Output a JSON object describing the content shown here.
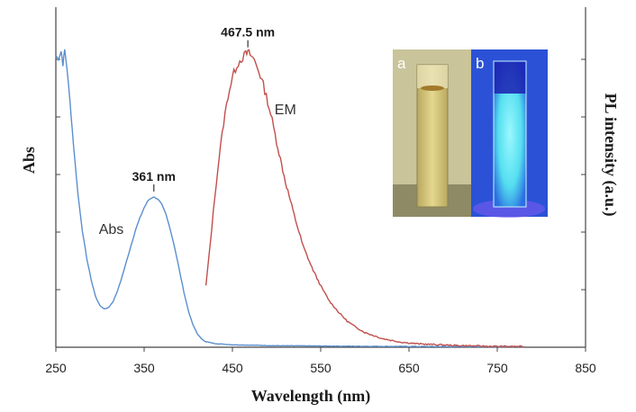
{
  "chart_data": {
    "type": "line",
    "xlabel": "Wavelength  (nm)",
    "ylabel_left": "Abs",
    "ylabel_right": "PL intensity (a.u.)",
    "xlim": [
      250,
      850
    ],
    "xticks": [
      "250",
      "350",
      "450",
      "550",
      "650",
      "750",
      "850"
    ],
    "ylim": [
      0,
      1
    ],
    "series": [
      {
        "name": "Abs",
        "color": "#5b8fce",
        "points": [
          [
            250,
            0.95
          ],
          [
            253,
            0.94
          ],
          [
            256,
            0.965
          ],
          [
            258,
            0.92
          ],
          [
            260,
            0.97
          ],
          [
            263,
            0.9
          ],
          [
            266,
            0.8
          ],
          [
            270,
            0.66
          ],
          [
            275,
            0.5
          ],
          [
            280,
            0.38
          ],
          [
            285,
            0.29
          ],
          [
            290,
            0.22
          ],
          [
            295,
            0.165
          ],
          [
            300,
            0.135
          ],
          [
            305,
            0.125
          ],
          [
            310,
            0.13
          ],
          [
            315,
            0.15
          ],
          [
            320,
            0.185
          ],
          [
            325,
            0.23
          ],
          [
            330,
            0.28
          ],
          [
            335,
            0.33
          ],
          [
            340,
            0.38
          ],
          [
            345,
            0.42
          ],
          [
            350,
            0.455
          ],
          [
            355,
            0.48
          ],
          [
            360,
            0.49
          ],
          [
            365,
            0.485
          ],
          [
            370,
            0.465
          ],
          [
            375,
            0.43
          ],
          [
            380,
            0.38
          ],
          [
            385,
            0.32
          ],
          [
            390,
            0.25
          ],
          [
            395,
            0.18
          ],
          [
            400,
            0.12
          ],
          [
            405,
            0.075
          ],
          [
            410,
            0.045
          ],
          [
            415,
            0.027
          ],
          [
            420,
            0.018
          ],
          [
            430,
            0.012
          ],
          [
            450,
            0.008
          ],
          [
            500,
            0.005
          ],
          [
            600,
            0.003
          ],
          [
            700,
            0.002
          ],
          [
            780,
            0.002
          ]
        ]
      },
      {
        "name": "EM",
        "color": "#c0504d",
        "points": [
          [
            420,
            0.2
          ],
          [
            425,
            0.34
          ],
          [
            430,
            0.49
          ],
          [
            435,
            0.62
          ],
          [
            440,
            0.73
          ],
          [
            445,
            0.82
          ],
          [
            450,
            0.88
          ],
          [
            455,
            0.92
          ],
          [
            460,
            0.94
          ],
          [
            465,
            0.955
          ],
          [
            467.5,
            0.96
          ],
          [
            470,
            0.955
          ],
          [
            475,
            0.935
          ],
          [
            480,
            0.9
          ],
          [
            485,
            0.855
          ],
          [
            490,
            0.8
          ],
          [
            495,
            0.74
          ],
          [
            500,
            0.67
          ],
          [
            510,
            0.54
          ],
          [
            520,
            0.43
          ],
          [
            530,
            0.33
          ],
          [
            540,
            0.26
          ],
          [
            550,
            0.2
          ],
          [
            560,
            0.15
          ],
          [
            570,
            0.115
          ],
          [
            580,
            0.085
          ],
          [
            590,
            0.065
          ],
          [
            600,
            0.048
          ],
          [
            620,
            0.028
          ],
          [
            640,
            0.017
          ],
          [
            660,
            0.011
          ],
          [
            700,
            0.006
          ],
          [
            740,
            0.003
          ],
          [
            780,
            0.002
          ]
        ]
      }
    ],
    "annotations": [
      {
        "text": "467.5 nm",
        "x": 467.5,
        "y": 0.96,
        "series": "EM"
      },
      {
        "text": "361 nm",
        "x": 361,
        "y": 0.49,
        "series": "Abs"
      }
    ],
    "series_labels": [
      {
        "text": "Abs",
        "x": 313,
        "y": 0.37
      },
      {
        "text": "EM",
        "x": 510,
        "y": 0.76
      }
    ]
  },
  "inset": {
    "panel_a_label": "a",
    "panel_b_label": "b",
    "panel_a_color": "#c9c49a",
    "panel_b_color": "#2b52d6",
    "glow_color": "#7ef0ff"
  }
}
